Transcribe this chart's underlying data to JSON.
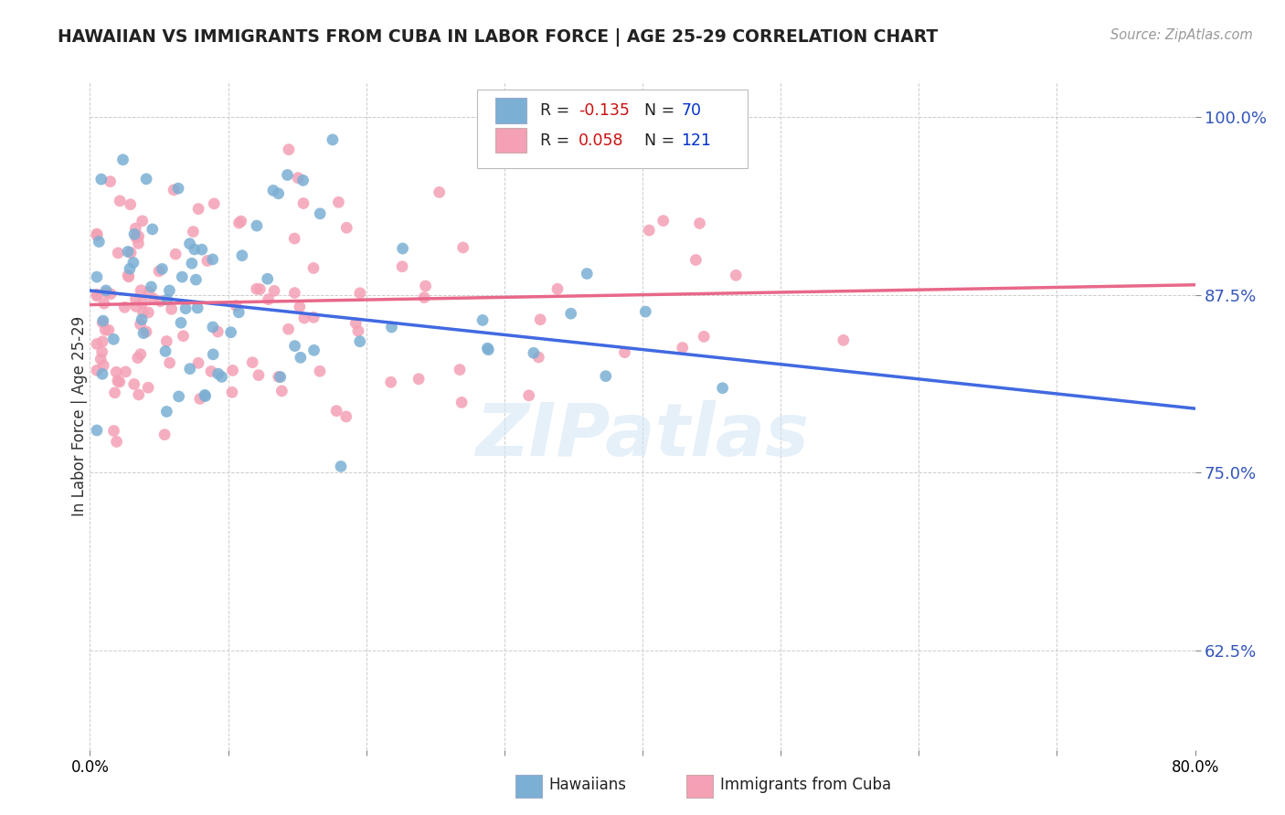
{
  "title": "HAWAIIAN VS IMMIGRANTS FROM CUBA IN LABOR FORCE | AGE 25-29 CORRELATION CHART",
  "source": "Source: ZipAtlas.com",
  "ylabel": "In Labor Force | Age 25-29",
  "xmin": 0.0,
  "xmax": 0.8,
  "ymin": 0.555,
  "ymax": 1.025,
  "hawaiians_color": "#7bafd4",
  "cuba_color": "#f4a0b5",
  "hawaii_line_color": "#4169e1",
  "cuba_line_color": "#e8688a",
  "hawaii_R": -0.135,
  "hawaii_N": 70,
  "cuba_R": 0.058,
  "cuba_N": 121,
  "watermark": "ZIPatlas",
  "hawaii_line_x0": 0.0,
  "hawaii_line_y0": 0.878,
  "hawaii_line_x1": 0.8,
  "hawaii_line_y1": 0.795,
  "cuba_line_x0": 0.0,
  "cuba_line_y0": 0.868,
  "cuba_line_x1": 0.8,
  "cuba_line_y1": 0.882
}
